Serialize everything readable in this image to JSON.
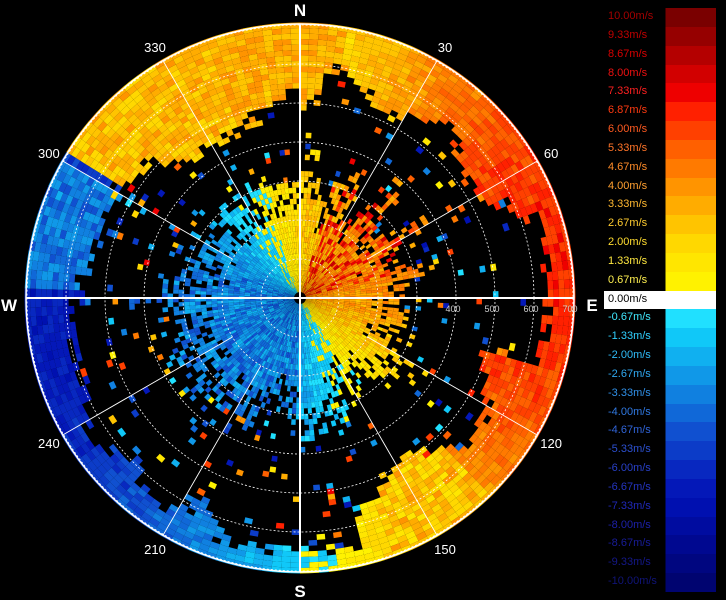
{
  "compass": {
    "north": "N",
    "south": "S",
    "east": "E",
    "west": "W"
  },
  "azimuth_labels": [
    {
      "deg": 30,
      "text": "30"
    },
    {
      "deg": 60,
      "text": "60"
    },
    {
      "deg": 120,
      "text": "120"
    },
    {
      "deg": 150,
      "text": "150"
    },
    {
      "deg": 210,
      "text": "210"
    },
    {
      "deg": 240,
      "text": "240"
    },
    {
      "deg": 300,
      "text": "300"
    },
    {
      "deg": 330,
      "text": "330"
    }
  ],
  "range_rings": [
    {
      "ring": 4,
      "text": "400"
    },
    {
      "ring": 5,
      "text": "500"
    },
    {
      "ring": 6,
      "text": "600"
    },
    {
      "ring": 7,
      "text": "700"
    }
  ],
  "colorbar": {
    "unit": "m/s",
    "entries": [
      {
        "label": "10.00m/s",
        "color": "#7a0000",
        "text_color": "#a40000"
      },
      {
        "label": "9.33m/s",
        "color": "#960000",
        "text_color": "#c00000"
      },
      {
        "label": "8.67m/s",
        "color": "#b40000",
        "text_color": "#d80000"
      },
      {
        "label": "8.00m/s",
        "color": "#d20000",
        "text_color": "#ee1010"
      },
      {
        "label": "7.33m/s",
        "color": "#ee0000",
        "text_color": "#ff2020"
      },
      {
        "label": "6.87m/s",
        "color": "#ff2000",
        "text_color": "#ff3a10"
      },
      {
        "label": "6.00m/s",
        "color": "#ff4000",
        "text_color": "#ff5a20"
      },
      {
        "label": "5.33m/s",
        "color": "#ff6000",
        "text_color": "#ff7428"
      },
      {
        "label": "4.67m/s",
        "color": "#ff7a00",
        "text_color": "#ff8c28"
      },
      {
        "label": "4.00m/s",
        "color": "#ff9400",
        "text_color": "#ffa030"
      },
      {
        "label": "3.33m/s",
        "color": "#ffac00",
        "text_color": "#ffb830"
      },
      {
        "label": "2.67m/s",
        "color": "#ffc400",
        "text_color": "#ffcc30"
      },
      {
        "label": "2.00m/s",
        "color": "#ffd800",
        "text_color": "#ffdc30"
      },
      {
        "label": "1.33m/s",
        "color": "#ffe600",
        "text_color": "#ffe840"
      },
      {
        "label": "0.67m/s",
        "color": "#fff200",
        "text_color": "#fff050"
      },
      {
        "label": "0.00m/s",
        "color": "#ffffff",
        "text_color": "#ffffff"
      },
      {
        "label": "-0.67m/s",
        "color": "#20e0ff",
        "text_color": "#40e8ff"
      },
      {
        "label": "-1.33m/s",
        "color": "#10c8f8",
        "text_color": "#30d0ff"
      },
      {
        "label": "-2.00m/s",
        "color": "#10b0f0",
        "text_color": "#30bcf8"
      },
      {
        "label": "-2.67m/s",
        "color": "#1098e8",
        "text_color": "#30a8f0"
      },
      {
        "label": "-3.33m/s",
        "color": "#1080e0",
        "text_color": "#3090e8"
      },
      {
        "label": "-4.00m/s",
        "color": "#1068d8",
        "text_color": "#3078e0"
      },
      {
        "label": "-4.67m/s",
        "color": "#1050d0",
        "text_color": "#3064d8"
      },
      {
        "label": "-5.33m/s",
        "color": "#0c3cc8",
        "text_color": "#2c50d0"
      },
      {
        "label": "-6.00m/s",
        "color": "#0828c0",
        "text_color": "#2840c8"
      },
      {
        "label": "-6.67m/s",
        "color": "#0418b8",
        "text_color": "#2434c0"
      },
      {
        "label": "-7.33m/s",
        "color": "#0010b0",
        "text_color": "#2028b8"
      },
      {
        "label": "-8.00m/s",
        "color": "#000ca0",
        "text_color": "#1c20a8"
      },
      {
        "label": "-8.67m/s",
        "color": "#000890",
        "text_color": "#181c98"
      },
      {
        "label": "-9.33m/s",
        "color": "#000680",
        "text_color": "#141888"
      },
      {
        "label": "-10.00m/s",
        "color": "#000470",
        "text_color": "#101478"
      }
    ]
  }
}
